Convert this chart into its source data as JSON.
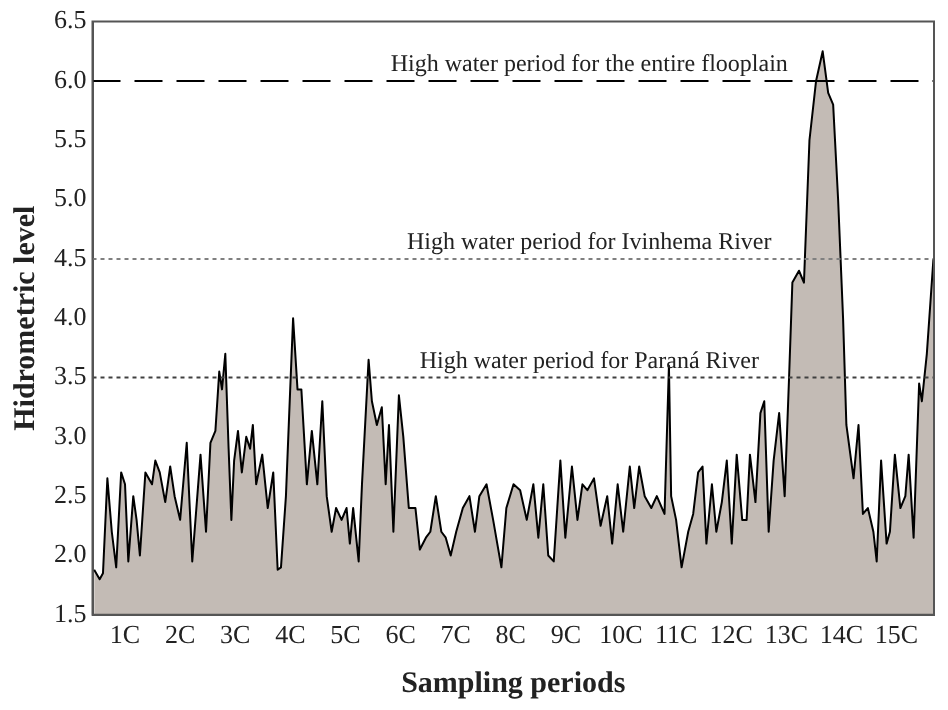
{
  "chart_data": {
    "type": "area",
    "xlabel": "Sampling periods",
    "ylabel": "Hidrometric level",
    "x": [
      0.44,
      0.54,
      0.6,
      0.68,
      0.76,
      0.84,
      0.93,
      1.0,
      1.06,
      1.15,
      1.21,
      1.27,
      1.37,
      1.49,
      1.55,
      1.63,
      1.73,
      1.82,
      1.9,
      2.0,
      2.12,
      2.22,
      2.37,
      2.47,
      2.55,
      2.64,
      2.71,
      2.76,
      2.82,
      2.88,
      2.93,
      2.98,
      3.05,
      3.12,
      3.2,
      3.27,
      3.32,
      3.38,
      3.49,
      3.59,
      3.69,
      3.77,
      3.83,
      3.92,
      3.98,
      4.05,
      4.13,
      4.2,
      4.3,
      4.39,
      4.49,
      4.58,
      4.66,
      4.75,
      4.83,
      4.93,
      5.02,
      5.08,
      5.14,
      5.24,
      5.3,
      5.42,
      5.48,
      5.57,
      5.66,
      5.73,
      5.79,
      5.87,
      5.97,
      6.05,
      6.15,
      6.27,
      6.35,
      6.46,
      6.54,
      6.64,
      6.74,
      6.82,
      6.91,
      7.01,
      7.13,
      7.25,
      7.35,
      7.43,
      7.56,
      7.68,
      7.83,
      7.92,
      8.05,
      8.17,
      8.29,
      8.41,
      8.5,
      8.59,
      8.68,
      8.78,
      8.9,
      8.99,
      9.11,
      9.21,
      9.3,
      9.39,
      9.51,
      9.63,
      9.75,
      9.84,
      9.94,
      10.04,
      10.16,
      10.24,
      10.33,
      10.43,
      10.55,
      10.65,
      10.79,
      10.87,
      10.91,
      11.0,
      11.1,
      11.22,
      11.31,
      11.4,
      11.48,
      11.55,
      11.65,
      11.73,
      11.83,
      11.92,
      12.01,
      12.1,
      12.2,
      12.28,
      12.34,
      12.44,
      12.53,
      12.6,
      12.68,
      12.77,
      12.87,
      12.97,
      13.05,
      13.11,
      13.23,
      13.32,
      13.42,
      13.54,
      13.66,
      13.76,
      13.85,
      13.94,
      14.03,
      14.09,
      14.22,
      14.31,
      14.39,
      14.48,
      14.58,
      14.64,
      14.72,
      14.82,
      14.88,
      14.97,
      15.07,
      15.16,
      15.22,
      15.31,
      15.41,
      15.46,
      15.55,
      15.67
    ],
    "series": [
      {
        "color": "#c3bbb5",
        "values": [
          1.88,
          1.8,
          1.85,
          2.65,
          2.2,
          1.9,
          2.7,
          2.6,
          1.95,
          2.5,
          2.3,
          2.0,
          2.7,
          2.6,
          2.8,
          2.7,
          2.45,
          2.75,
          2.5,
          2.3,
          2.95,
          1.95,
          2.85,
          2.2,
          2.95,
          3.05,
          3.55,
          3.4,
          3.7,
          2.9,
          2.3,
          2.8,
          3.05,
          2.7,
          3.0,
          2.9,
          3.1,
          2.6,
          2.85,
          2.4,
          2.7,
          1.88,
          1.9,
          2.5,
          3.2,
          4.0,
          3.4,
          3.4,
          2.6,
          3.05,
          2.6,
          3.3,
          2.5,
          2.2,
          2.4,
          2.3,
          2.4,
          2.1,
          2.4,
          1.95,
          2.6,
          3.65,
          3.3,
          3.1,
          3.25,
          2.6,
          3.1,
          2.2,
          3.35,
          3.0,
          2.4,
          2.4,
          2.05,
          2.15,
          2.2,
          2.5,
          2.2,
          2.15,
          2.0,
          2.2,
          2.4,
          2.5,
          2.2,
          2.5,
          2.6,
          2.3,
          1.9,
          2.4,
          2.6,
          2.55,
          2.3,
          2.6,
          2.15,
          2.6,
          2.0,
          1.95,
          2.8,
          2.15,
          2.75,
          2.3,
          2.6,
          2.55,
          2.65,
          2.25,
          2.5,
          2.1,
          2.6,
          2.2,
          2.75,
          2.4,
          2.75,
          2.5,
          2.4,
          2.5,
          2.35,
          3.6,
          2.5,
          2.3,
          1.9,
          2.2,
          2.35,
          2.7,
          2.75,
          2.1,
          2.6,
          2.2,
          2.45,
          2.8,
          2.1,
          2.85,
          2.3,
          2.3,
          2.85,
          2.45,
          3.2,
          3.3,
          2.2,
          2.8,
          3.2,
          2.5,
          3.5,
          4.3,
          4.4,
          4.3,
          5.5,
          6.0,
          6.25,
          5.9,
          5.8,
          5.0,
          4.0,
          3.1,
          2.65,
          3.1,
          2.35,
          2.4,
          2.2,
          1.95,
          2.8,
          2.1,
          2.2,
          2.85,
          2.4,
          2.5,
          2.85,
          2.15,
          3.45,
          3.3,
          3.7,
          4.5
        ]
      }
    ],
    "xlim": [
      0.41,
      15.68
    ],
    "xticks": [
      {
        "value": 1,
        "label": "1C"
      },
      {
        "value": 2,
        "label": "2C"
      },
      {
        "value": 3,
        "label": "3C"
      },
      {
        "value": 4,
        "label": "4C"
      },
      {
        "value": 5,
        "label": "5C"
      },
      {
        "value": 6,
        "label": "6C"
      },
      {
        "value": 7,
        "label": "7C"
      },
      {
        "value": 8,
        "label": "8C"
      },
      {
        "value": 9,
        "label": "9C"
      },
      {
        "value": 10,
        "label": "10C"
      },
      {
        "value": 11,
        "label": "11C"
      },
      {
        "value": 12,
        "label": "12C"
      },
      {
        "value": 13,
        "label": "13C"
      },
      {
        "value": 14,
        "label": "14C"
      },
      {
        "value": 15,
        "label": "15C"
      }
    ],
    "ylim": [
      1.5,
      6.5
    ],
    "yticks": [
      1.5,
      {
        "value": 2,
        "label": "2.0"
      },
      2.5,
      {
        "value": 3,
        "label": "3.0"
      },
      3.5,
      {
        "value": 4,
        "label": "4.0"
      },
      4.5,
      {
        "value": 5,
        "label": "5.0"
      },
      5.5,
      {
        "value": 6,
        "label": "6.0"
      },
      6.5
    ],
    "ref_lines": [
      {
        "axis": "y",
        "value": 6,
        "label": "High water period for the entire flooplain",
        "color": "#000000",
        "line_style": "dashed"
      },
      {
        "axis": "y",
        "value": 4.5,
        "label": "High water period for Ivinhema River",
        "color": "#808080",
        "line_style": "dotted"
      },
      {
        "axis": "y",
        "value": 3.5,
        "label": "High water period for Paraná River",
        "color": "#404040",
        "line_style": "dotted"
      }
    ],
    "grid": false,
    "legend": false
  }
}
